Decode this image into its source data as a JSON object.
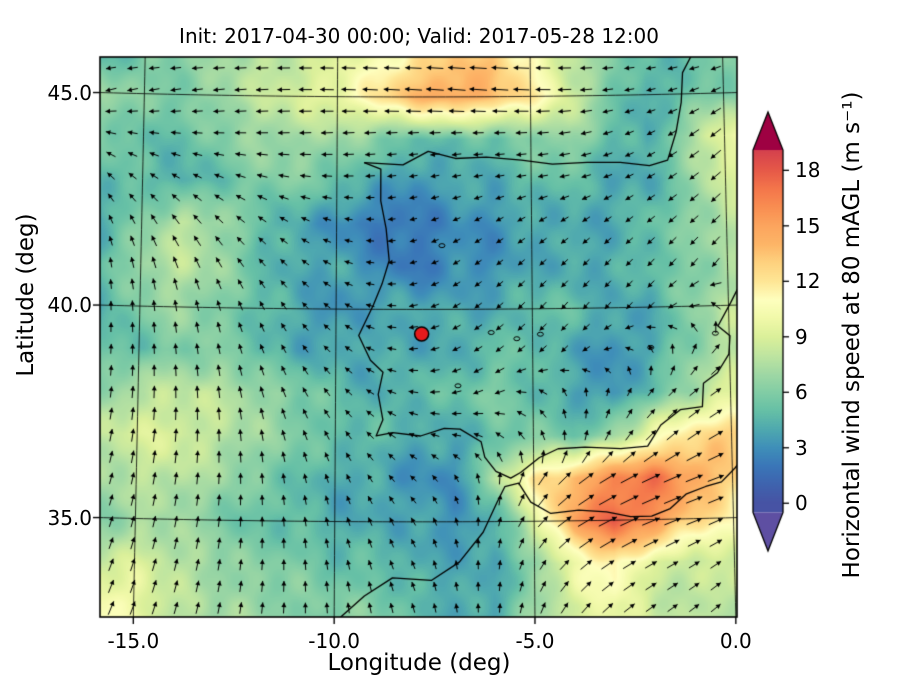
{
  "figure": {
    "title": "Init: 2017-04-30 00:00; Valid: 2017-05-28 12:00",
    "xlabel": "Longitude (deg)",
    "ylabel": "Latitude (deg)",
    "x_tick_labels": [
      "-15.0",
      "-10.0",
      "-5.0",
      "0.0"
    ],
    "x_tick_lons": [
      -15,
      -10,
      -5,
      0
    ],
    "y_tick_labels": [
      "35.0",
      "40.0",
      "45.0"
    ],
    "y_tick_lats": [
      35,
      40,
      45
    ],
    "background": "#ffffff",
    "text_color": "#000000"
  },
  "colorbar": {
    "label": "Horizontal wind speed at 80 mAGL (m s⁻¹)",
    "tick_labels": [
      "0",
      "3",
      "6",
      "9",
      "12",
      "15",
      "18"
    ],
    "tick_values": [
      0,
      3,
      6,
      9,
      12,
      15,
      18
    ],
    "under_color": "#5e4fa2",
    "over_color": "#9e0142",
    "stops": [
      [
        0,
        "#4753a4"
      ],
      [
        1,
        "#3f63ae"
      ],
      [
        2,
        "#3a76b8"
      ],
      [
        3,
        "#3f8fb9"
      ],
      [
        4,
        "#4fa9af"
      ],
      [
        5,
        "#66c0a6"
      ],
      [
        6,
        "#82cda5"
      ],
      [
        7,
        "#a0d8a4"
      ],
      [
        8,
        "#bfe5a0"
      ],
      [
        9,
        "#dbf09a"
      ],
      [
        10,
        "#f1f9a9"
      ],
      [
        11,
        "#feffbe"
      ],
      [
        12,
        "#fee695"
      ],
      [
        13,
        "#fed27f"
      ],
      [
        14,
        "#fdb567"
      ],
      [
        15,
        "#fca55e"
      ],
      [
        16,
        "#f98e52"
      ],
      [
        17,
        "#f4764b"
      ],
      [
        18,
        "#e65948"
      ],
      [
        19,
        "#d6434d"
      ],
      [
        20,
        "#b11b4a"
      ],
      [
        21,
        "#9e0142"
      ]
    ]
  },
  "chart_data": {
    "type": "heatmap",
    "subtype": "wind-speed-map-with-quiver",
    "title": "Init: 2017-04-30 00:00; Valid: 2017-05-28 12:00",
    "xlabel": "Longitude (deg)",
    "ylabel": "Latitude (deg)",
    "colorbar_label": "Horizontal wind speed at 80 mAGL (m s⁻¹)",
    "colorbar_ticks": [
      0,
      3,
      6,
      9,
      12,
      15,
      18
    ],
    "units": "m s⁻¹",
    "lon_range": [
      -16.0,
      0.25
    ],
    "lat_range": [
      32.8,
      45.9
    ],
    "grid_lons": [
      -16,
      -15,
      -14,
      -13,
      -12,
      -11,
      -10,
      -9,
      -8,
      -7,
      -6,
      -5,
      -4,
      -3,
      -2,
      -1,
      0
    ],
    "grid_lats": [
      46,
      45,
      44,
      43,
      42,
      41,
      40,
      39,
      38,
      37,
      36,
      35,
      34,
      33
    ],
    "wind_speed_ms": [
      [
        4,
        6,
        6,
        7,
        8,
        8,
        9,
        10,
        12,
        13,
        13,
        11,
        8,
        6,
        5,
        5,
        6
      ],
      [
        7,
        6,
        6,
        7,
        8,
        9,
        10,
        12,
        14,
        15,
        14,
        12,
        9,
        6,
        4,
        5,
        6
      ],
      [
        6,
        5,
        5,
        6,
        7,
        7,
        7,
        6,
        5,
        5,
        5,
        6,
        7,
        5,
        4,
        7,
        10
      ],
      [
        5,
        5,
        4,
        5,
        6,
        6,
        5,
        4,
        3,
        4,
        4,
        5,
        5,
        4,
        4,
        6,
        9
      ],
      [
        4,
        6,
        8,
        7,
        5,
        4,
        3,
        2,
        2,
        3,
        3,
        4,
        4,
        4,
        5,
        6,
        8
      ],
      [
        5,
        7,
        8,
        7,
        5,
        4,
        4,
        3,
        2,
        3,
        3,
        4,
        4,
        4,
        5,
        6,
        7
      ],
      [
        4,
        6,
        7,
        6,
        5,
        4,
        3,
        4,
        4,
        4,
        4,
        5,
        5,
        4,
        4,
        6,
        8
      ],
      [
        5,
        5,
        6,
        6,
        5,
        4,
        4,
        4,
        4,
        4,
        5,
        5,
        4,
        3,
        4,
        6,
        8
      ],
      [
        6,
        8,
        8,
        8,
        7,
        6,
        5,
        4,
        5,
        5,
        6,
        5,
        4,
        3,
        5,
        7,
        9
      ],
      [
        8,
        9,
        9,
        8,
        7,
        6,
        5,
        5,
        4,
        4,
        5,
        6,
        5,
        7,
        10,
        12,
        13
      ],
      [
        7,
        8,
        8,
        7,
        6,
        5,
        4,
        4,
        3,
        3,
        7,
        12,
        14,
        16,
        17,
        15,
        13
      ],
      [
        6,
        7,
        7,
        6,
        5,
        5,
        4,
        4,
        4,
        3,
        4,
        9,
        15,
        18,
        16,
        13,
        11
      ],
      [
        8,
        9,
        8,
        7,
        6,
        6,
        5,
        5,
        4,
        4,
        4,
        6,
        10,
        12,
        9,
        8,
        9
      ],
      [
        11,
        10,
        8,
        7,
        7,
        6,
        6,
        6,
        5,
        4,
        4,
        7,
        9,
        10,
        8,
        8,
        8
      ]
    ],
    "wind_dir_deg_math": [
      [
        185,
        184,
        183,
        182,
        181,
        180,
        179,
        178,
        178,
        177,
        177,
        178,
        180,
        183,
        186,
        190,
        195
      ],
      [
        195,
        192,
        189,
        186,
        183,
        180,
        178,
        177,
        176,
        175,
        176,
        178,
        183,
        188,
        194,
        200,
        207
      ],
      [
        165,
        170,
        174,
        178,
        180,
        182,
        183,
        184,
        184,
        183,
        182,
        184,
        190,
        198,
        207,
        214,
        220
      ],
      [
        135,
        143,
        150,
        157,
        164,
        171,
        178,
        185,
        190,
        192,
        191,
        189,
        193,
        201,
        210,
        216,
        222
      ],
      [
        112,
        119,
        127,
        135,
        143,
        153,
        166,
        180,
        194,
        204,
        210,
        211,
        213,
        216,
        219,
        221,
        224
      ],
      [
        97,
        104,
        111,
        119,
        129,
        141,
        156,
        176,
        195,
        210,
        218,
        222,
        224,
        225,
        227,
        229,
        231
      ],
      [
        90,
        94,
        99,
        106,
        116,
        129,
        146,
        168,
        192,
        210,
        220,
        226,
        229,
        229,
        226,
        200,
        120
      ],
      [
        86,
        90,
        95,
        101,
        110,
        122,
        138,
        160,
        185,
        205,
        215,
        221,
        224,
        190,
        120,
        70,
        40
      ],
      [
        82,
        86,
        91,
        96,
        105,
        115,
        130,
        150,
        172,
        192,
        205,
        160,
        105,
        72,
        52,
        40,
        33
      ],
      [
        78,
        82,
        86,
        91,
        98,
        108,
        120,
        138,
        156,
        170,
        150,
        118,
        85,
        60,
        45,
        35,
        28
      ],
      [
        74,
        78,
        82,
        87,
        93,
        100,
        110,
        124,
        138,
        120,
        90,
        60,
        40,
        30,
        25,
        22,
        20
      ],
      [
        71,
        75,
        79,
        83,
        89,
        96,
        105,
        114,
        120,
        105,
        80,
        52,
        33,
        26,
        22,
        21,
        25
      ],
      [
        68,
        72,
        76,
        80,
        85,
        92,
        100,
        108,
        112,
        100,
        86,
        62,
        42,
        32,
        29,
        31,
        35
      ],
      [
        66,
        70,
        74,
        78,
        83,
        88,
        95,
        102,
        106,
        98,
        88,
        72,
        52,
        40,
        35,
        37,
        41
      ]
    ],
    "marker": {
      "lon": -7.82,
      "lat": 39.42,
      "fill": "#e41a1c",
      "edge": "#000000"
    },
    "graticule": {
      "meridians": [
        -15,
        -10,
        -5,
        0
      ],
      "parallels": [
        35,
        40,
        45
      ]
    }
  },
  "map": {
    "coastlines": [
      [
        [
          -9.3,
          43.45
        ],
        [
          -8.87,
          43.3
        ],
        [
          -8.87,
          42.55
        ],
        [
          -8.73,
          41.9
        ],
        [
          -8.65,
          41.15
        ],
        [
          -8.83,
          40.6
        ],
        [
          -9.05,
          40.1
        ],
        [
          -9.42,
          39.38
        ],
        [
          -9.12,
          38.8
        ],
        [
          -8.8,
          38.52
        ],
        [
          -8.92,
          38.0
        ],
        [
          -8.8,
          37.4
        ],
        [
          -8.97,
          37.02
        ],
        [
          -8.55,
          37.1
        ],
        [
          -7.85,
          37.02
        ],
        [
          -7.25,
          37.2
        ],
        [
          -6.85,
          37.18
        ],
        [
          -6.32,
          36.88
        ],
        [
          -6.23,
          36.52
        ],
        [
          -5.95,
          36.18
        ],
        [
          -5.58,
          36.02
        ],
        [
          -5.33,
          36.15
        ],
        [
          -4.85,
          36.5
        ],
        [
          -4.38,
          36.7
        ],
        [
          -3.7,
          36.73
        ],
        [
          -2.8,
          36.68
        ],
        [
          -2.12,
          36.73
        ],
        [
          -1.78,
          37.22
        ],
        [
          -1.28,
          37.57
        ],
        [
          -0.72,
          37.63
        ],
        [
          -0.68,
          38.18
        ],
        [
          -0.32,
          38.42
        ],
        [
          -0.02,
          38.85
        ],
        [
          0.02,
          39.28
        ],
        [
          -0.28,
          39.52
        ],
        [
          0.05,
          40.05
        ],
        [
          0.3,
          40.48
        ],
        [
          0.75,
          40.85
        ]
      ],
      [
        [
          -9.3,
          43.45
        ],
        [
          -8.3,
          43.4
        ],
        [
          -7.65,
          43.72
        ],
        [
          -6.95,
          43.55
        ],
        [
          -6.15,
          43.58
        ],
        [
          -5.25,
          43.5
        ],
        [
          -4.45,
          43.4
        ],
        [
          -3.55,
          43.43
        ],
        [
          -2.7,
          43.42
        ],
        [
          -1.95,
          43.33
        ],
        [
          -1.48,
          43.45
        ],
        [
          -1.25,
          44.1
        ],
        [
          -1.1,
          44.8
        ],
        [
          -1.05,
          45.5
        ],
        [
          -0.78,
          45.95
        ],
        [
          -0.58,
          46.25
        ]
      ],
      [
        [
          -9.9,
          32.7
        ],
        [
          -9.25,
          33.25
        ],
        [
          -8.55,
          33.68
        ],
        [
          -7.58,
          33.62
        ],
        [
          -6.88,
          34.05
        ],
        [
          -6.28,
          34.75
        ],
        [
          -5.93,
          35.45
        ],
        [
          -5.73,
          35.82
        ],
        [
          -5.38,
          35.9
        ],
        [
          -5.08,
          35.45
        ],
        [
          -4.58,
          35.18
        ],
        [
          -3.88,
          35.25
        ],
        [
          -3.18,
          35.2
        ],
        [
          -2.58,
          35.08
        ],
        [
          -2.05,
          35.08
        ],
        [
          -1.58,
          35.25
        ],
        [
          -1.18,
          35.58
        ],
        [
          -0.68,
          35.75
        ],
        [
          -0.28,
          35.85
        ],
        [
          0.08,
          36.18
        ],
        [
          0.3,
          36.45
        ]
      ]
    ],
    "lakes": [
      [
        -6.05,
        39.45
      ],
      [
        -5.4,
        39.3
      ],
      [
        -4.8,
        39.4
      ],
      [
        -2.0,
        39.05
      ],
      [
        -0.35,
        39.35
      ],
      [
        -6.9,
        38.2
      ],
      [
        -7.3,
        41.5
      ],
      [
        -1.3,
        46.05
      ]
    ]
  }
}
